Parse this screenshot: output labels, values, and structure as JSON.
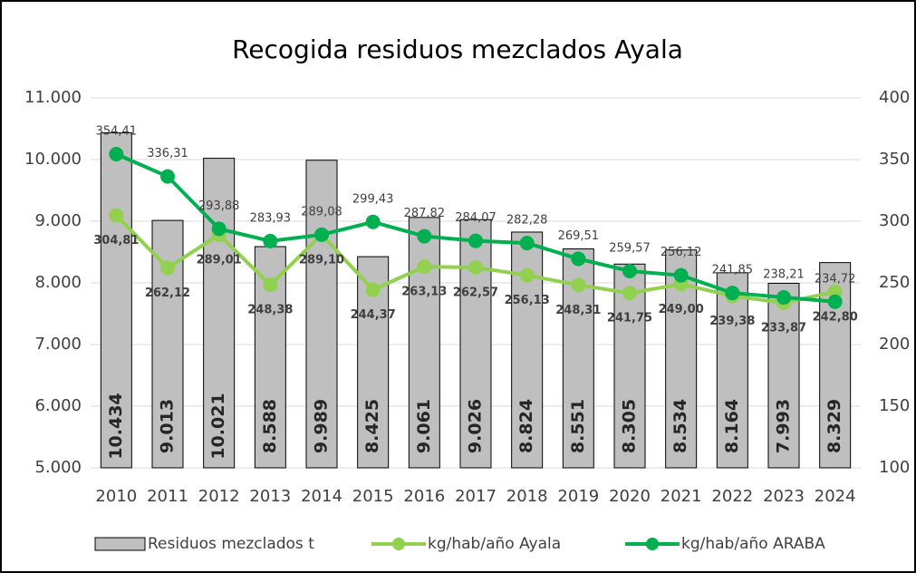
{
  "chart_data": {
    "type": "bar_line",
    "title": "Recogida residuos mezclados  Ayala",
    "categories": [
      "2010",
      "2011",
      "2012",
      "2013",
      "2014",
      "2015",
      "2016",
      "2017",
      "2018",
      "2019",
      "2020",
      "2021",
      "2022",
      "2023",
      "2024"
    ],
    "series": [
      {
        "name": "Residuos mezclados t",
        "type": "bar",
        "color": "#bfbfbf",
        "axis": "y",
        "values": [
          10434,
          9013,
          10021,
          8588,
          9989,
          8425,
          9061,
          9026,
          8824,
          8551,
          8305,
          8534,
          8164,
          7993,
          8329
        ],
        "value_labels": [
          "10.434",
          "9.013",
          "10.021",
          "8.588",
          "9.989",
          "8.425",
          "9.061",
          "9.026",
          "8.824",
          "8.551",
          "8.305",
          "8.534",
          "8.164",
          "7.993",
          "8.329"
        ]
      },
      {
        "name": "kg/hab/año Ayala",
        "type": "line",
        "color": "#92d050",
        "axis": "y2",
        "values": [
          304.81,
          262.12,
          289.01,
          248.38,
          289.1,
          244.37,
          263.13,
          262.57,
          256.13,
          248.31,
          241.75,
          249.0,
          239.38,
          233.87,
          242.8
        ],
        "value_labels": [
          "304,81",
          "262,12",
          "289,01",
          "248,38",
          "289,10",
          "244,37",
          "263,13",
          "262,57",
          "256,13",
          "248,31",
          "241,75",
          "249,00",
          "239,38",
          "233,87",
          "242,80"
        ]
      },
      {
        "name": "kg/hab/año ARABA",
        "type": "line",
        "color": "#00b050",
        "axis": "y2",
        "values": [
          354.41,
          336.31,
          293.88,
          283.93,
          289.08,
          299.43,
          287.82,
          284.07,
          282.28,
          269.51,
          259.57,
          256.12,
          241.85,
          238.21,
          234.72
        ],
        "value_labels": [
          "354,41",
          "336,31",
          "293,88",
          "283,93",
          "289,08",
          "299,43",
          "287,82",
          "284,07",
          "282,28",
          "269,51",
          "259,57",
          "256,12",
          "241,85",
          "238,21",
          "234,72"
        ]
      }
    ],
    "ylim": [
      5000,
      11000
    ],
    "yticks": [
      {
        "value": 5000,
        "label": "5.000"
      },
      {
        "value": 6000,
        "label": "6.000"
      },
      {
        "value": 7000,
        "label": "7.000"
      },
      {
        "value": 8000,
        "label": "8.000"
      },
      {
        "value": 9000,
        "label": "9.000"
      },
      {
        "value": 10000,
        "label": "10.000"
      },
      {
        "value": 11000,
        "label": "11.000"
      }
    ],
    "y2lim": [
      100,
      400
    ],
    "y2ticks": [
      100,
      150,
      200,
      250,
      300,
      350,
      400
    ],
    "grid": true,
    "legend": "bottom"
  }
}
